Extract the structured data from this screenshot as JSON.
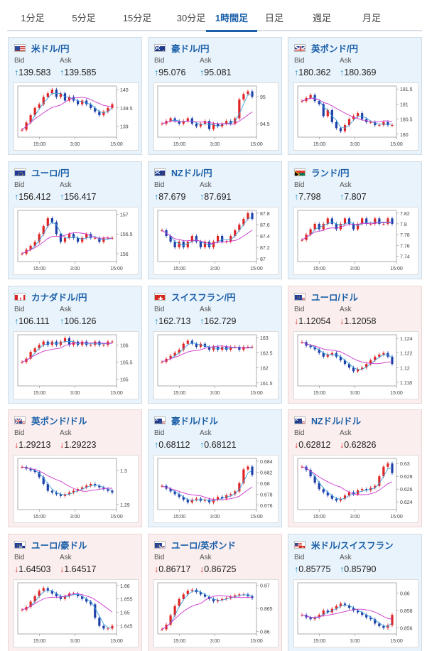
{
  "tabs": [
    {
      "label": "1分足",
      "active": false
    },
    {
      "label": "5分足",
      "active": false
    },
    {
      "label": "15分足",
      "active": false
    },
    {
      "label": "30分足",
      "active": false
    },
    {
      "label": "1時間足",
      "active": true
    },
    {
      "label": "日足",
      "active": false
    },
    {
      "label": "週足",
      "active": false
    },
    {
      "label": "月足",
      "active": false
    }
  ],
  "labels": {
    "bid": "Bid",
    "ask": "Ask"
  },
  "colors": {
    "up": "#1a8fc8",
    "down": "#dd3333",
    "candle_up": "#e02424",
    "candle_down": "#1f3fa8",
    "ma_short": "#39a0e0",
    "ma_long": "#cc33cc"
  },
  "cards": [
    {
      "pair": "米ドル/円",
      "flag": "us-flag-icon",
      "direction": "up",
      "bid": "139.583",
      "ask": "139.585",
      "chart_data": {
        "type": "candlestick",
        "x_ticks": [
          "15:00",
          "3:00",
          "15:00"
        ],
        "y_ticks": [
          "140",
          "139.5",
          "139"
        ],
        "ylim": [
          138.7,
          140.1
        ],
        "closes": [
          138.9,
          139.1,
          139.3,
          139.5,
          139.6,
          139.8,
          139.9,
          140.0,
          139.8,
          139.9,
          139.7,
          139.8,
          139.7,
          139.6,
          139.7,
          139.6,
          139.5,
          139.4,
          139.3,
          139.4,
          139.5,
          139.6
        ]
      }
    },
    {
      "pair": "豪ドル/円",
      "flag": "au-flag-icon",
      "direction": "up",
      "bid": "95.076",
      "ask": "95.081",
      "chart_data": {
        "type": "candlestick",
        "x_ticks": [
          "15:00",
          "3:00",
          "15:00"
        ],
        "y_ticks": [
          "95",
          "94.5"
        ],
        "ylim": [
          94.25,
          95.2
        ],
        "closes": [
          94.5,
          94.55,
          94.6,
          94.55,
          94.5,
          94.55,
          94.6,
          94.5,
          94.45,
          94.5,
          94.55,
          94.4,
          94.5,
          94.45,
          94.5,
          94.55,
          94.5,
          94.6,
          94.95,
          95.05,
          95.1,
          95.0
        ]
      }
    },
    {
      "pair": "英ポンド/円",
      "flag": "gb-flag-icon",
      "direction": "up",
      "bid": "180.362",
      "ask": "180.369",
      "chart_data": {
        "type": "candlestick",
        "x_ticks": [
          "15:00",
          "3:00",
          "15:00"
        ],
        "y_ticks": [
          "181.5",
          "181",
          "180.5",
          "180"
        ],
        "ylim": [
          179.9,
          181.6
        ],
        "closes": [
          181.1,
          181.2,
          181.3,
          181.1,
          181.0,
          180.6,
          180.8,
          180.4,
          180.2,
          180.1,
          180.3,
          180.5,
          180.6,
          180.7,
          180.5,
          180.4,
          180.4,
          180.3,
          180.3,
          180.4,
          180.3,
          180.3
        ]
      }
    },
    {
      "pair": "ユーロ/円",
      "flag": "eu-flag-icon",
      "direction": "up",
      "bid": "156.412",
      "ask": "156.417",
      "chart_data": {
        "type": "candlestick",
        "x_ticks": [
          "15:00",
          "3:00",
          "15:00"
        ],
        "y_ticks": [
          "157",
          "156.5",
          "156"
        ],
        "ylim": [
          155.8,
          157.1
        ],
        "closes": [
          156.0,
          156.1,
          156.2,
          156.3,
          156.5,
          156.7,
          156.9,
          156.8,
          156.5,
          156.3,
          156.4,
          156.5,
          156.4,
          156.3,
          156.4,
          156.5,
          156.4,
          156.4,
          156.3,
          156.4,
          156.4,
          156.4
        ]
      }
    },
    {
      "pair": "NZドル/円",
      "flag": "nz-flag-icon",
      "direction": "up",
      "bid": "87.679",
      "ask": "87.691",
      "chart_data": {
        "type": "candlestick",
        "x_ticks": [
          "15:00",
          "3:00",
          "15:00"
        ],
        "y_ticks": [
          "87.8",
          "87.6",
          "87.4",
          "87.2",
          "87"
        ],
        "ylim": [
          86.95,
          87.85
        ],
        "closes": [
          87.5,
          87.4,
          87.3,
          87.2,
          87.3,
          87.2,
          87.3,
          87.4,
          87.3,
          87.2,
          87.3,
          87.2,
          87.3,
          87.4,
          87.3,
          87.3,
          87.4,
          87.5,
          87.6,
          87.7,
          87.8,
          87.7
        ]
      }
    },
    {
      "pair": "ランド/円",
      "flag": "za-flag-icon",
      "direction": "up",
      "bid": "7.798",
      "ask": "7.807",
      "chart_data": {
        "type": "candlestick",
        "x_ticks": [
          "15:00",
          "3:00",
          "15:00"
        ],
        "y_ticks": [
          "7.82",
          "7.8",
          "7.78",
          "7.76",
          "7.74"
        ],
        "ylim": [
          7.73,
          7.825
        ],
        "closes": [
          7.77,
          7.78,
          7.79,
          7.8,
          7.79,
          7.8,
          7.81,
          7.8,
          7.79,
          7.8,
          7.81,
          7.8,
          7.79,
          7.8,
          7.81,
          7.8,
          7.8,
          7.81,
          7.8,
          7.8,
          7.81,
          7.8
        ]
      }
    },
    {
      "pair": "カナダドル/円",
      "flag": "ca-flag-icon",
      "direction": "up",
      "bid": "106.111",
      "ask": "106.126",
      "chart_data": {
        "type": "candlestick",
        "x_ticks": [
          "15:00",
          "3:00",
          "15:00"
        ],
        "y_ticks": [
          "106",
          "105.5",
          "105"
        ],
        "ylim": [
          104.8,
          106.3
        ],
        "closes": [
          105.5,
          105.6,
          105.8,
          105.9,
          106.0,
          106.1,
          106.0,
          106.1,
          106.0,
          106.1,
          106.2,
          106.0,
          106.1,
          106.0,
          106.1,
          106.0,
          106.0,
          106.1,
          106.0,
          106.0,
          106.1,
          106.1
        ]
      }
    },
    {
      "pair": "スイスフラン/円",
      "flag": "ch-flag-icon",
      "direction": "up",
      "bid": "162.713",
      "ask": "162.729",
      "chart_data": {
        "type": "candlestick",
        "x_ticks": [
          "15:00",
          "3:00",
          "15:00"
        ],
        "y_ticks": [
          "163",
          "162.5",
          "162",
          "161.5"
        ],
        "ylim": [
          161.4,
          163.1
        ],
        "closes": [
          162.2,
          162.3,
          162.4,
          162.5,
          162.6,
          162.8,
          162.9,
          162.8,
          162.7,
          162.8,
          162.7,
          162.6,
          162.7,
          162.6,
          162.7,
          162.6,
          162.7,
          162.7,
          162.6,
          162.7,
          162.7,
          162.7
        ]
      }
    },
    {
      "pair": "ユーロ/ドル",
      "flag": "eu-us-flag-icon",
      "direction": "down",
      "bid": "1.12054",
      "ask": "1.12058",
      "chart_data": {
        "type": "candlestick",
        "x_ticks": [
          "15:00",
          "3:00",
          "15:00"
        ],
        "y_ticks": [
          "1.124",
          "1.122",
          "1.12",
          "1.118"
        ],
        "ylim": [
          1.1175,
          1.1245
        ],
        "closes": [
          1.1235,
          1.123,
          1.1228,
          1.1225,
          1.122,
          1.1215,
          1.1218,
          1.122,
          1.1215,
          1.121,
          1.1205,
          1.12,
          1.1195,
          1.1198,
          1.12,
          1.1205,
          1.121,
          1.1215,
          1.1218,
          1.122,
          1.1215,
          1.1205
        ]
      }
    },
    {
      "pair": "英ポンド/ドル",
      "flag": "gb-us-flag-icon",
      "direction": "down",
      "bid": "1.29213",
      "ask": "1.29223",
      "chart_data": {
        "type": "candlestick",
        "x_ticks": [
          "15:00",
          "3:00",
          "15:00"
        ],
        "y_ticks": [
          "1.3",
          "1.29"
        ],
        "ylim": [
          1.2885,
          1.3035
        ],
        "closes": [
          1.301,
          1.3005,
          1.3,
          1.2995,
          1.298,
          1.296,
          1.294,
          1.2935,
          1.293,
          1.2925,
          1.293,
          1.2935,
          1.294,
          1.2945,
          1.295,
          1.2955,
          1.296,
          1.2955,
          1.295,
          1.2945,
          1.294,
          1.2935
        ]
      }
    },
    {
      "pair": "豪ドル/ドル",
      "flag": "au-us-flag-icon",
      "direction": "up",
      "bid": "0.68112",
      "ask": "0.68121",
      "chart_data": {
        "type": "candlestick",
        "x_ticks": [
          "15:00",
          "3:00",
          "15:00"
        ],
        "y_ticks": [
          "0.684",
          "0.682",
          "0.68",
          "0.678",
          "0.676"
        ],
        "ylim": [
          0.6752,
          0.6845
        ],
        "closes": [
          0.6795,
          0.679,
          0.6785,
          0.678,
          0.6775,
          0.677,
          0.6765,
          0.677,
          0.6772,
          0.6768,
          0.677,
          0.6765,
          0.677,
          0.6775,
          0.6772,
          0.6778,
          0.678,
          0.6785,
          0.68,
          0.6825,
          0.683,
          0.6815
        ]
      }
    },
    {
      "pair": "NZドル/ドル",
      "flag": "nz-us-flag-icon",
      "direction": "down",
      "bid": "0.62812",
      "ask": "0.62826",
      "chart_data": {
        "type": "candlestick",
        "x_ticks": [
          "15:00",
          "3:00",
          "15:00"
        ],
        "y_ticks": [
          "0.63",
          "0.628",
          "0.626",
          "0.624"
        ],
        "ylim": [
          0.6228,
          0.6308
        ],
        "closes": [
          0.6295,
          0.629,
          0.628,
          0.627,
          0.626,
          0.6255,
          0.625,
          0.6245,
          0.6242,
          0.6245,
          0.625,
          0.6255,
          0.6252,
          0.6258,
          0.626,
          0.6258,
          0.6262,
          0.6265,
          0.628,
          0.6295,
          0.63,
          0.6285
        ]
      }
    },
    {
      "pair": "ユーロ/豪ドル",
      "flag": "eu-au-flag-icon",
      "direction": "down",
      "bid": "1.64503",
      "ask": "1.64517",
      "chart_data": {
        "type": "candlestick",
        "x_ticks": [
          "15:00",
          "3:00",
          "15:00"
        ],
        "y_ticks": [
          "1.66",
          "1.655",
          "1.65",
          "1.645"
        ],
        "ylim": [
          1.642,
          1.661
        ],
        "closes": [
          1.651,
          1.652,
          1.654,
          1.656,
          1.658,
          1.659,
          1.658,
          1.657,
          1.656,
          1.655,
          1.656,
          1.657,
          1.657,
          1.656,
          1.655,
          1.654,
          1.653,
          1.648,
          1.645,
          1.644,
          1.644,
          1.645
        ]
      }
    },
    {
      "pair": "ユーロ/英ポンド",
      "flag": "eu-gb-flag-icon",
      "direction": "down",
      "bid": "0.86717",
      "ask": "0.86725",
      "chart_data": {
        "type": "candlestick",
        "x_ticks": [
          "15:00",
          "3:00",
          "15:00"
        ],
        "y_ticks": [
          "0.87",
          "0.865",
          "0.86"
        ],
        "ylim": [
          0.8595,
          0.8705
        ],
        "closes": [
          0.8605,
          0.8615,
          0.8635,
          0.8655,
          0.867,
          0.868,
          0.8688,
          0.869,
          0.8685,
          0.868,
          0.8675,
          0.867,
          0.8665,
          0.8668,
          0.867,
          0.8672,
          0.8675,
          0.8678,
          0.868,
          0.868,
          0.8676,
          0.8672
        ]
      }
    },
    {
      "pair": "米ドル/スイスフラン",
      "flag": "us-ch-flag-icon",
      "direction": "up",
      "bid": "0.85775",
      "ask": "0.85790",
      "chart_data": {
        "type": "candlestick",
        "x_ticks": [
          "15:00",
          "3:00",
          "15:00"
        ],
        "y_ticks": [
          "0.86",
          "0.858",
          "0.856"
        ],
        "ylim": [
          0.8553,
          0.8612
        ],
        "closes": [
          0.8575,
          0.8572,
          0.857,
          0.8572,
          0.8575,
          0.858,
          0.8578,
          0.8582,
          0.8585,
          0.8588,
          0.8586,
          0.8583,
          0.858,
          0.8578,
          0.8575,
          0.8572,
          0.857,
          0.8565,
          0.8562,
          0.856,
          0.8563,
          0.8575
        ]
      }
    }
  ]
}
